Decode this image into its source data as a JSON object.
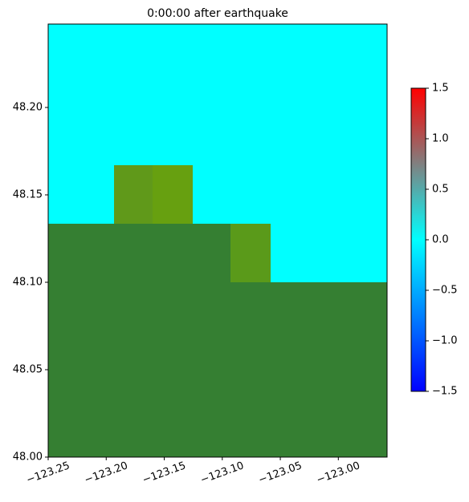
{
  "chart_data": {
    "type": "map",
    "title": "0:00:00 after earthquake",
    "xlim": [
      -123.25,
      -122.958
    ],
    "ylim": [
      48.0,
      48.2477
    ],
    "xticks": [
      {
        "value": -123.25,
        "label": "−123.25"
      },
      {
        "value": -123.2,
        "label": "−123.20"
      },
      {
        "value": -123.15,
        "label": "−123.15"
      },
      {
        "value": -123.1,
        "label": "−123.10"
      },
      {
        "value": -123.05,
        "label": "−123.05"
      },
      {
        "value": -123.0,
        "label": "−123.00"
      }
    ],
    "yticks": [
      {
        "value": 48.0,
        "label": "48.00"
      },
      48.05,
      {
        "value": 48.1,
        "label": "48.10"
      },
      48.15,
      {
        "value": 48.2,
        "label": "48.20"
      }
    ],
    "colorbar": {
      "lim": [
        -1.5,
        1.5
      ],
      "ticks": [
        {
          "value": -1.5,
          "label": "−1.5"
        },
        {
          "value": -1.0,
          "label": "−1.0"
        },
        {
          "value": -0.5,
          "label": "−0.5"
        },
        {
          "value": 0.0,
          "label": "0.0"
        },
        0.5,
        {
          "value": 1.0,
          "label": "1.0"
        },
        1.5
      ]
    }
  }
}
